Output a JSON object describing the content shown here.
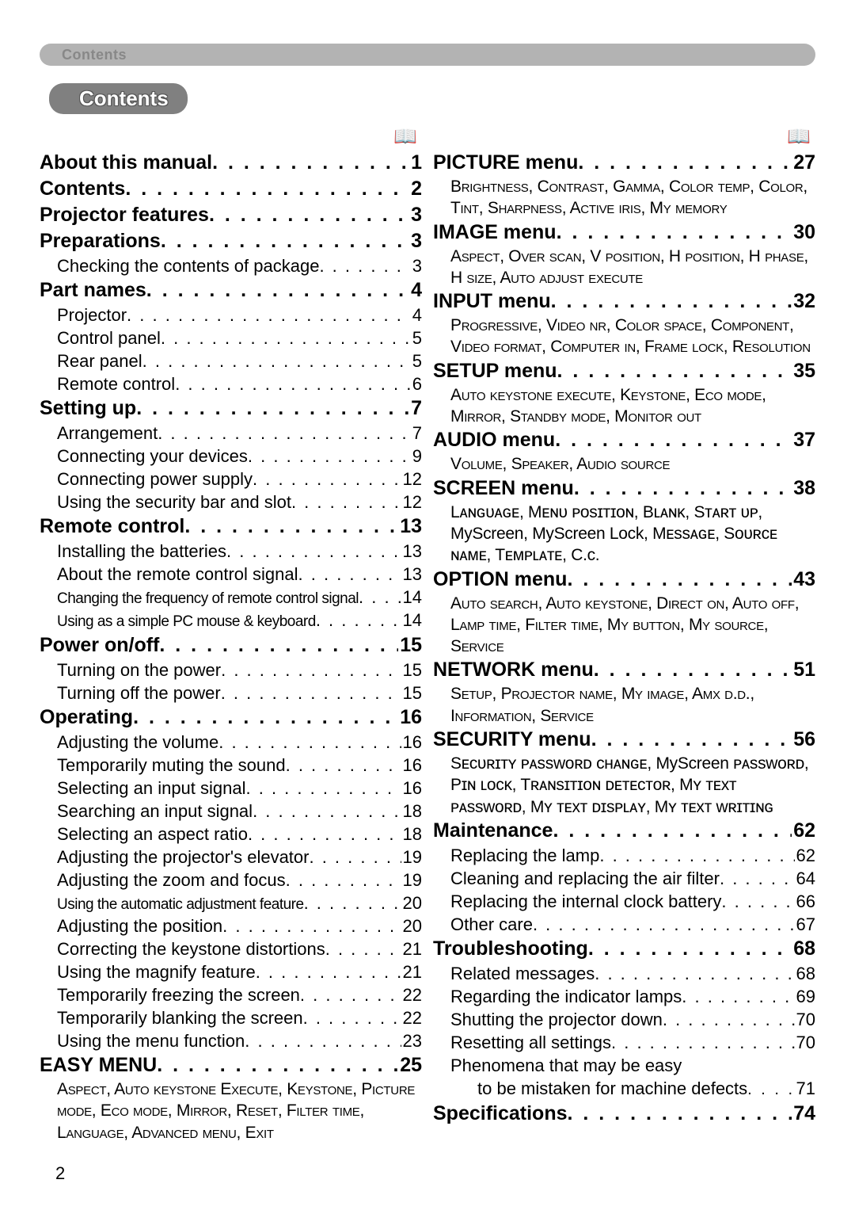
{
  "header": {
    "breadcrumb": "Contents"
  },
  "title": "Contents",
  "pageNumber": "2",
  "icons": {
    "book": "📖"
  },
  "left": [
    {
      "type": "icon"
    },
    {
      "lvl": 1,
      "label": "About this manual",
      "pg": "1"
    },
    {
      "lvl": 1,
      "label": "Contents",
      "pg": "2"
    },
    {
      "lvl": 1,
      "label": "Projector features",
      "pg": "3"
    },
    {
      "lvl": 1,
      "label": "Preparations",
      "pg": "3"
    },
    {
      "lvl": 2,
      "label": "Checking the contents of package",
      "pg": "3"
    },
    {
      "lvl": 1,
      "label": "Part names",
      "pg": "4"
    },
    {
      "lvl": 2,
      "label": "Projector",
      "pg": "4"
    },
    {
      "lvl": 2,
      "label": "Control panel",
      "pg": "5"
    },
    {
      "lvl": 2,
      "label": "Rear panel",
      "pg": "5"
    },
    {
      "lvl": 2,
      "label": "Remote control",
      "pg": "6"
    },
    {
      "lvl": 1,
      "label": "Setting up",
      "pg": "7"
    },
    {
      "lvl": 2,
      "label": "Arrangement",
      "pg": "7"
    },
    {
      "lvl": 2,
      "label": "Connecting your devices",
      "pg": "9"
    },
    {
      "lvl": 2,
      "label": "Connecting power supply",
      "pg": "12"
    },
    {
      "lvl": 2,
      "label": "Using the security bar and slot",
      "pg": "12"
    },
    {
      "lvl": 1,
      "label": "Remote control",
      "pg": "13"
    },
    {
      "lvl": 2,
      "label": "Installing the batteries",
      "pg": "13"
    },
    {
      "lvl": 2,
      "label": "About the remote control signal",
      "pg": "13"
    },
    {
      "lvl": 2,
      "tight": true,
      "label": "Changing the frequency of remote control signal",
      "pg": "14"
    },
    {
      "lvl": 2,
      "tight": true,
      "label": "Using as a simple PC mouse & keyboard",
      "pg": "14"
    },
    {
      "lvl": 1,
      "label": "Power on/off",
      "pg": "15"
    },
    {
      "lvl": 2,
      "label": "Turning on the power",
      "pg": "15"
    },
    {
      "lvl": 2,
      "label": "Turning off the power",
      "pg": "15"
    },
    {
      "lvl": 1,
      "label": "Operating",
      "pg": "16"
    },
    {
      "lvl": 2,
      "label": "Adjusting the volume",
      "pg": "16"
    },
    {
      "lvl": 2,
      "label": "Temporarily muting the sound",
      "pg": "16"
    },
    {
      "lvl": 2,
      "label": "Selecting an input signal",
      "pg": "16"
    },
    {
      "lvl": 2,
      "label": "Searching an input signal",
      "pg": "18"
    },
    {
      "lvl": 2,
      "label": "Selecting an aspect ratio",
      "pg": "18"
    },
    {
      "lvl": 2,
      "label": "Adjusting the projector's elevator",
      "pg": "19"
    },
    {
      "lvl": 2,
      "label": "Adjusting the zoom and focus",
      "pg": "19"
    },
    {
      "lvl": 2,
      "tight": true,
      "label": "Using the automatic adjustment feature",
      "pg": "20"
    },
    {
      "lvl": 2,
      "label": "Adjusting the position",
      "pg": "20"
    },
    {
      "lvl": 2,
      "label": "Correcting the keystone distortions",
      "pg": "21"
    },
    {
      "lvl": 2,
      "label": "Using the magnify feature",
      "pg": "21"
    },
    {
      "lvl": 2,
      "label": "Temporarily freezing the screen",
      "pg": "22"
    },
    {
      "lvl": 2,
      "label": "Temporarily blanking the screen",
      "pg": "22"
    },
    {
      "lvl": 2,
      "label": "Using the menu function",
      "pg": "23"
    },
    {
      "lvl": 1,
      "label": "EASY MENU",
      "pg": "25"
    },
    {
      "type": "desc",
      "text": "Aspect, Auto keystone Execute, Keystone, Picture mode, Eco mode, Mirror, Reset, Filter time, Language, Advanced menu, Exit"
    }
  ],
  "right": [
    {
      "type": "icon"
    },
    {
      "lvl": 1,
      "label": "PICTURE menu",
      "pg": "27"
    },
    {
      "type": "desc",
      "text": "Brightness, Contrast, Gamma, Color temp, Color, Tint, Sharpness, Active iris, My memory"
    },
    {
      "lvl": 1,
      "label": "IMAGE menu",
      "pg": "30"
    },
    {
      "type": "desc",
      "text": "Aspect, Over scan, V position, H position, H phase, H size, Auto adjust execute"
    },
    {
      "lvl": 1,
      "label": "INPUT menu",
      "pg": "32"
    },
    {
      "type": "desc",
      "text": "Progressive, Video nr, Color space, Component, Video format, Computer in, Frame lock, Resolution"
    },
    {
      "lvl": 1,
      "label": "SETUP menu",
      "pg": "35"
    },
    {
      "type": "desc",
      "text": "Auto keystone execute, Keystone, Eco mode, Mirror, Standby mode, Monitor out"
    },
    {
      "lvl": 1,
      "label": "AUDIO menu",
      "pg": "37"
    },
    {
      "type": "desc",
      "text": "Volume, Speaker, Audio source"
    },
    {
      "lvl": 1,
      "label": "SCREEN menu",
      "pg": "38"
    },
    {
      "type": "desc-plain",
      "text": "Lᴀɴɢᴜᴀɢᴇ, Mᴇɴᴜ ᴘᴏsɪᴛɪᴏɴ, Bʟᴀɴᴋ, Sᴛᴀʀᴛ ᴜᴘ, MyScreen, MyScreen Lock, Mᴇssᴀɢᴇ, Sᴏᴜʀᴄᴇ ɴᴀᴍᴇ, Tᴇᴍᴘʟᴀᴛᴇ, C.ᴄ."
    },
    {
      "lvl": 1,
      "label": "OPTION menu",
      "pg": "43"
    },
    {
      "type": "desc",
      "text": "Auto search, Auto keystone, Direct on, Auto off, Lamp time, Filter time, My button, My source, Service"
    },
    {
      "lvl": 1,
      "label": "NETWORK menu",
      "pg": "51"
    },
    {
      "type": "desc",
      "text": "Setup, Projector name, My image, Amx d.d., Information, Service"
    },
    {
      "lvl": 1,
      "label": "SECURITY menu",
      "pg": "56"
    },
    {
      "type": "desc-plain",
      "text": "Sᴇᴄᴜʀɪᴛʏ ᴘᴀssᴡᴏʀᴅ ᴄʜᴀɴɢᴇ, MyScreen ᴘᴀssᴡᴏʀᴅ, Pɪɴ ʟᴏᴄᴋ, Tʀᴀɴsɪᴛɪᴏɴ ᴅᴇᴛᴇᴄᴛᴏʀ, Mʏ ᴛᴇxᴛ ᴘᴀssᴡᴏʀᴅ, Mʏ ᴛᴇxᴛ ᴅɪsᴘʟᴀʏ, Mʏ ᴛᴇxᴛ ᴡʀɪᴛɪɴɢ"
    },
    {
      "lvl": 1,
      "label": "Maintenance",
      "pg": "62"
    },
    {
      "lvl": 2,
      "label": "Replacing the lamp",
      "pg": "62"
    },
    {
      "lvl": 2,
      "label": "Cleaning and replacing the air filter",
      "pg": "64"
    },
    {
      "lvl": 2,
      "label": "Replacing the internal clock battery",
      "pg": "66"
    },
    {
      "lvl": 2,
      "label": "Other care",
      "pg": "67"
    },
    {
      "lvl": 1,
      "label": "Troubleshooting",
      "pg": "68"
    },
    {
      "lvl": 2,
      "label": "Related messages",
      "pg": "68"
    },
    {
      "lvl": 2,
      "label": "Regarding the indicator lamps",
      "pg": "69"
    },
    {
      "lvl": 2,
      "label": "Shutting the projector down",
      "pg": "70"
    },
    {
      "lvl": 2,
      "label": "Resetting all settings",
      "pg": "70"
    },
    {
      "lvl": 2,
      "label": "Phenomena that may be easy",
      "pg": ""
    },
    {
      "lvl": 3,
      "label": "to be mistaken for machine defects",
      "pg": "71"
    },
    {
      "lvl": 1,
      "label": "Specifications",
      "pg": "74"
    }
  ]
}
